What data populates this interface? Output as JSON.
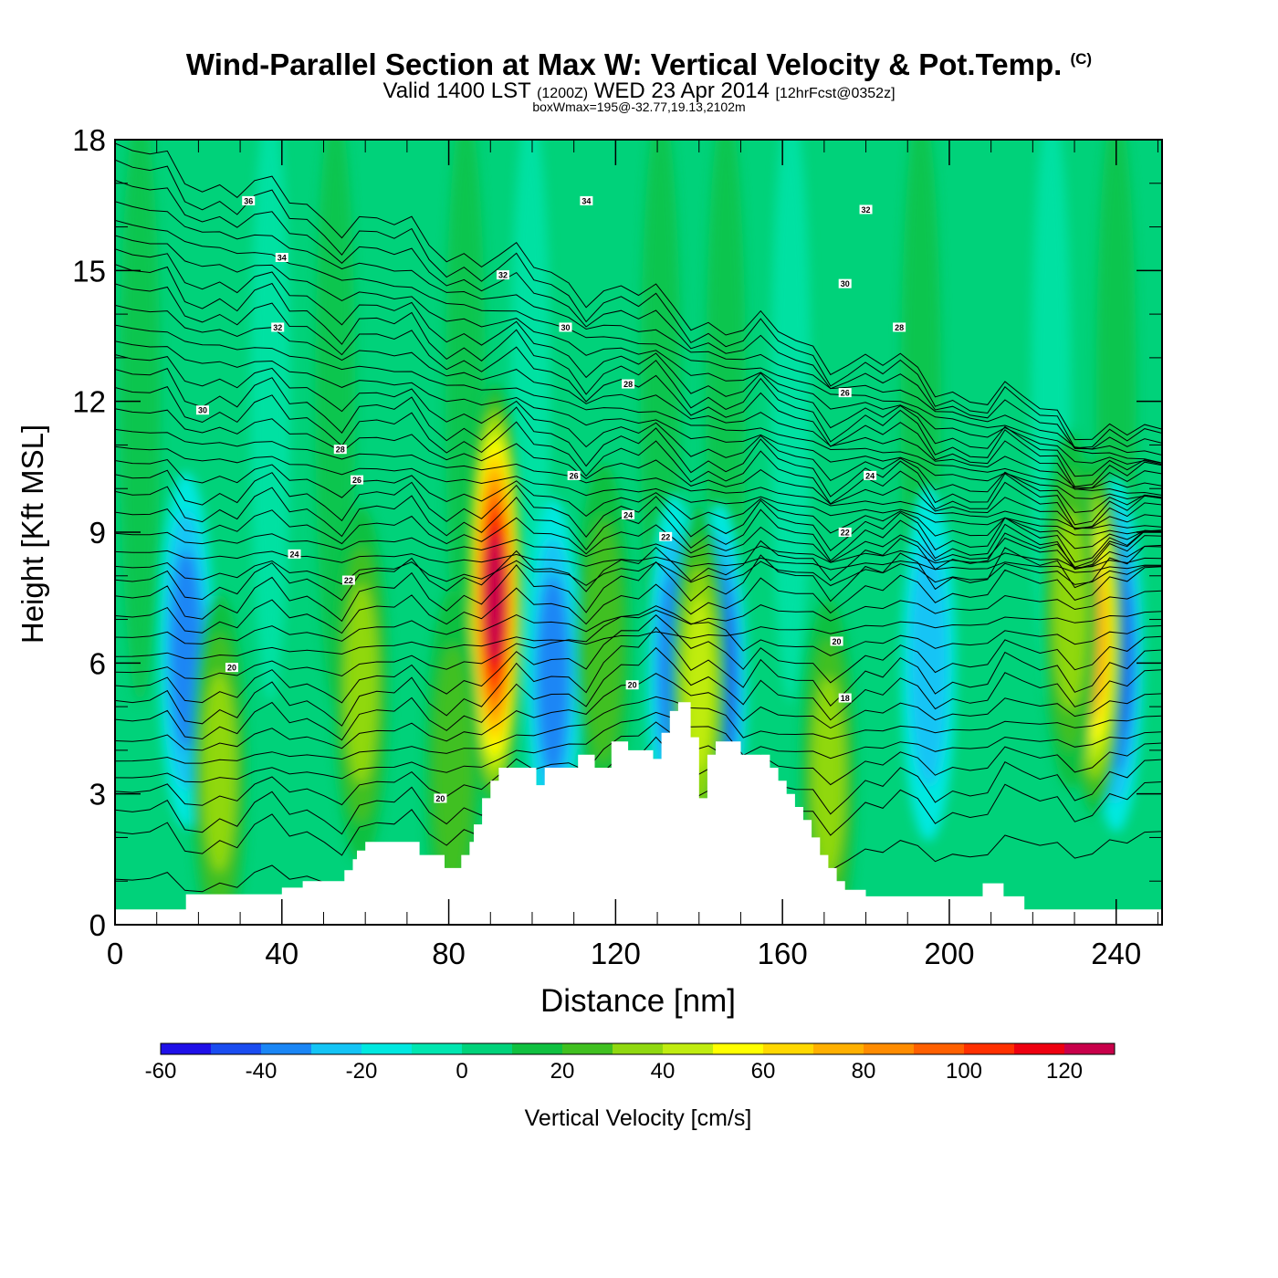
{
  "header": {
    "title": "Wind-Parallel Section at Max W: Vertical Velocity & Pot.Temp.",
    "copyright": "(C)",
    "valid_main": "Valid 1400 LST",
    "valid_utc": "(1200Z)",
    "valid_date": "WED 23 Apr 2014",
    "forecast": "[12hrFcst@0352z]",
    "subtitle": "boxWmax=195@-32.77,19.13,2102m"
  },
  "colors": {
    "background_field": "#00d27a",
    "terrain": "#ffffff",
    "contour": "#000000"
  },
  "chart_data": {
    "type": "heatmap",
    "xlabel": "Distance [nm]",
    "ylabel": "Height [Kft MSL]",
    "xlim": [
      0,
      251
    ],
    "ylim": [
      0,
      18
    ],
    "x_ticks": [
      0,
      40,
      80,
      120,
      160,
      200,
      240
    ],
    "y_ticks": [
      0,
      3,
      6,
      9,
      12,
      15,
      18
    ],
    "colorbar": {
      "label": "Vertical Velocity [cm/s]",
      "boundaries": [
        -60,
        -50,
        -40,
        -30,
        -20,
        -10,
        0,
        10,
        20,
        30,
        40,
        50,
        60,
        70,
        80,
        90,
        100,
        110,
        120,
        130
      ],
      "tick_labels": [
        "-60",
        "-40",
        "-20",
        "0",
        "20",
        "40",
        "60",
        "80",
        "100",
        "120"
      ],
      "colors": [
        "#1f10e8",
        "#1a4cf0",
        "#1a86f5",
        "#14c4f5",
        "#00e8e0",
        "#00e6b0",
        "#00d27a",
        "#10c040",
        "#40c020",
        "#90d810",
        "#c0ec10",
        "#ffff00",
        "#ffd800",
        "#ffb000",
        "#ff8c00",
        "#ff6000",
        "#ff3000",
        "#ee0010",
        "#c8004a"
      ]
    },
    "updrafts": [
      {
        "x": 91,
        "y": 7.5,
        "peak": 125
      },
      {
        "x": 235,
        "y": 6.6,
        "peak": 75
      },
      {
        "x": 25,
        "y": 3.5,
        "peak": 40
      },
      {
        "x": 59,
        "y": 5.5,
        "peak": 40
      },
      {
        "x": 140,
        "y": 5.5,
        "peak": 45
      },
      {
        "x": 229,
        "y": 7.2,
        "peak": 40
      },
      {
        "x": 117,
        "y": 6.5,
        "peak": 30
      },
      {
        "x": 171,
        "y": 3.4,
        "peak": 35
      },
      {
        "x": 81,
        "y": 3.6,
        "peak": 30
      }
    ],
    "downdrafts": [
      {
        "x": 17,
        "y": 6.3,
        "peak": -40
      },
      {
        "x": 105,
        "y": 5.7,
        "peak": -40
      },
      {
        "x": 134,
        "y": 5.8,
        "peak": -40
      },
      {
        "x": 145,
        "y": 5.6,
        "peak": -45
      },
      {
        "x": 240,
        "y": 6.2,
        "peak": -45
      },
      {
        "x": 195,
        "y": 6.0,
        "peak": -25
      }
    ],
    "terrain_profile": {
      "x": [
        0,
        17,
        17,
        40,
        40,
        45,
        45,
        55,
        55,
        57,
        57,
        58,
        58,
        60,
        60,
        73,
        73,
        79,
        79,
        83,
        83,
        85,
        85,
        86,
        86,
        88,
        88,
        90,
        90,
        92,
        92,
        101,
        101,
        103,
        103,
        111,
        111,
        115,
        115,
        119,
        119,
        123,
        123,
        129,
        129,
        131,
        131,
        133,
        133,
        135,
        135,
        138,
        138,
        140,
        140,
        142,
        142,
        144,
        144,
        150,
        150,
        157,
        157,
        159,
        159,
        161,
        161,
        163,
        163,
        165,
        165,
        167,
        167,
        169,
        169,
        171,
        171,
        173,
        173,
        175,
        175,
        180,
        180,
        182,
        182,
        208,
        208,
        213,
        213,
        218,
        218,
        251
      ],
      "heights": [
        0.35,
        0.35,
        0.7,
        0.7,
        0.85,
        0.85,
        1.0,
        1.0,
        1.25,
        1.25,
        1.5,
        1.5,
        1.7,
        1.7,
        1.9,
        1.9,
        1.6,
        1.6,
        1.3,
        1.3,
        1.6,
        1.6,
        1.9,
        1.9,
        2.3,
        2.3,
        2.9,
        2.9,
        3.3,
        3.3,
        3.6,
        3.6,
        3.2,
        3.2,
        3.6,
        3.6,
        3.9,
        3.9,
        3.6,
        3.6,
        4.2,
        4.2,
        4.0,
        4.0,
        3.8,
        3.8,
        4.4,
        4.4,
        4.9,
        4.9,
        5.1,
        5.1,
        4.3,
        4.3,
        2.9,
        2.9,
        3.9,
        3.9,
        4.2,
        4.2,
        3.9,
        3.9,
        3.6,
        3.6,
        3.3,
        3.3,
        3.0,
        3.0,
        2.7,
        2.7,
        2.4,
        2.4,
        2.0,
        2.0,
        1.6,
        1.6,
        1.3,
        1.3,
        1.0,
        1.0,
        0.8,
        0.8,
        0.65,
        0.65,
        0.65,
        0.65,
        0.95,
        0.95,
        0.65,
        0.65,
        0.35,
        0.35
      ]
    },
    "isentropes": {
      "levels_kft_at_x0": [
        0.9,
        1.9,
        2.4,
        2.9,
        3.3,
        3.7,
        4.1,
        4.5,
        4.9,
        5.3,
        5.7,
        6.1,
        6.5,
        6.9,
        7.3,
        7.7,
        8.1,
        8.5,
        8.9,
        9.3,
        9.7,
        10.1,
        10.5,
        10.9,
        11.3,
        11.7,
        12.1,
        12.5,
        12.9,
        13.3,
        13.7,
        14.1,
        14.5,
        14.9,
        15.3,
        15.7,
        16.1,
        16.5,
        16.9,
        17.3,
        17.7
      ]
    },
    "isentrope_labels": [
      {
        "text": "36",
        "x": 32,
        "y": 16.6
      },
      {
        "text": "34",
        "x": 40,
        "y": 15.3
      },
      {
        "text": "32",
        "x": 39,
        "y": 13.7
      },
      {
        "text": "30",
        "x": 21,
        "y": 11.8
      },
      {
        "text": "28",
        "x": 54,
        "y": 10.9
      },
      {
        "text": "26",
        "x": 58,
        "y": 10.2
      },
      {
        "text": "24",
        "x": 43,
        "y": 8.5
      },
      {
        "text": "22",
        "x": 56,
        "y": 7.9
      },
      {
        "text": "20",
        "x": 28,
        "y": 5.9
      },
      {
        "text": "32",
        "x": 93,
        "y": 14.9
      },
      {
        "text": "34",
        "x": 113,
        "y": 16.6
      },
      {
        "text": "30",
        "x": 108,
        "y": 13.7
      },
      {
        "text": "28",
        "x": 123,
        "y": 12.4
      },
      {
        "text": "26",
        "x": 110,
        "y": 10.3
      },
      {
        "text": "24",
        "x": 123,
        "y": 9.4
      },
      {
        "text": "22",
        "x": 132,
        "y": 8.9
      },
      {
        "text": "20",
        "x": 124,
        "y": 5.5
      },
      {
        "text": "20",
        "x": 78,
        "y": 2.9
      },
      {
        "text": "32",
        "x": 180,
        "y": 16.4
      },
      {
        "text": "30",
        "x": 175,
        "y": 14.7
      },
      {
        "text": "28",
        "x": 188,
        "y": 13.7
      },
      {
        "text": "26",
        "x": 175,
        "y": 12.2
      },
      {
        "text": "24",
        "x": 181,
        "y": 10.3
      },
      {
        "text": "22",
        "x": 175,
        "y": 9.0
      },
      {
        "text": "20",
        "x": 173,
        "y": 6.5
      },
      {
        "text": "18",
        "x": 175,
        "y": 5.2
      }
    ]
  }
}
